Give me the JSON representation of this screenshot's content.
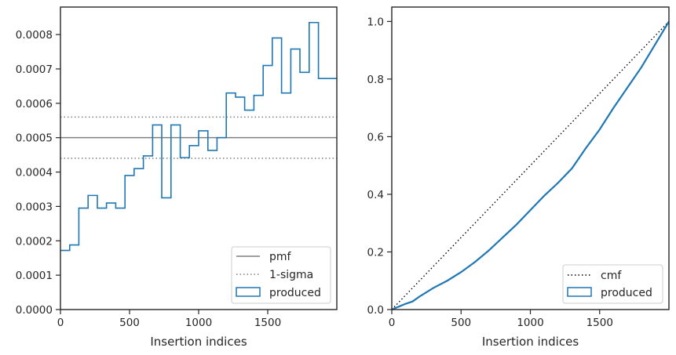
{
  "chart_data": [
    {
      "type": "step",
      "xlabel": "Insertion indices",
      "ylabel": "",
      "xlim": [
        0,
        2000
      ],
      "ylim": [
        0,
        0.00088
      ],
      "xticks": [
        0,
        500,
        1000,
        1500
      ],
      "xtick_labels": [
        "0",
        "500",
        "1000",
        "1500"
      ],
      "yticks": [
        0,
        0.0001,
        0.0002,
        0.0003,
        0.0004,
        0.0005,
        0.0006,
        0.0007,
        0.0008
      ],
      "ytick_labels": [
        "0.0000",
        "0.0001",
        "0.0002",
        "0.0003",
        "0.0004",
        "0.0005",
        "0.0006",
        "0.0007",
        "0.0008"
      ],
      "grid": false,
      "legend_position": "bottom-right",
      "pmf": {
        "name": "pmf",
        "value": 0.0005,
        "color": "#7f7f7f"
      },
      "sigma": {
        "name": "1-sigma",
        "lower": 0.00044,
        "upper": 0.00056,
        "color": "#7f7f7f"
      },
      "histogram": {
        "name": "produced",
        "color": "#1f77b4",
        "bin_edges": [
          0,
          67,
          133,
          200,
          267,
          333,
          400,
          467,
          533,
          600,
          667,
          733,
          800,
          867,
          933,
          1000,
          1067,
          1133,
          1200,
          1267,
          1333,
          1400,
          1467,
          1533,
          1600,
          1667,
          1733,
          1800,
          1867,
          1933,
          2000
        ],
        "values": [
          0.000172,
          0.000188,
          0.000295,
          0.000332,
          0.000295,
          0.00031,
          0.000295,
          0.00039,
          0.00041,
          0.000447,
          0.000537,
          0.000325,
          0.000537,
          0.000442,
          0.000477,
          0.00052,
          0.000463,
          0.0005,
          0.00063,
          0.000618,
          0.00058,
          0.000623,
          0.00071,
          0.00079,
          0.00063,
          0.000758,
          0.00069,
          0.000835,
          0.000672,
          0.000672
        ]
      }
    },
    {
      "type": "line",
      "xlabel": "Insertion indices",
      "ylabel": "",
      "xlim": [
        0,
        2000
      ],
      "ylim": [
        0,
        1.05
      ],
      "xticks": [
        0,
        500,
        1000,
        1500
      ],
      "xtick_labels": [
        "0",
        "500",
        "1000",
        "1500"
      ],
      "yticks": [
        0,
        0.2,
        0.4,
        0.6,
        0.8,
        1.0
      ],
      "ytick_labels": [
        "0.0",
        "0.2",
        "0.4",
        "0.6",
        "0.8",
        "1.0"
      ],
      "grid": false,
      "legend_position": "bottom-right",
      "series": [
        {
          "name": "cmf",
          "style": "dotted",
          "color": "#000000",
          "x": [
            0,
            2000
          ],
          "y": [
            0,
            1.0
          ]
        },
        {
          "name": "produced",
          "style": "solid",
          "color": "#1f77b4",
          "x": [
            0,
            100,
            150,
            200,
            300,
            400,
            500,
            600,
            700,
            800,
            900,
            1000,
            1100,
            1200,
            1300,
            1400,
            1500,
            1600,
            1700,
            1800,
            1900,
            2000
          ],
          "y": [
            0,
            0.02,
            0.028,
            0.045,
            0.075,
            0.1,
            0.13,
            0.165,
            0.205,
            0.25,
            0.295,
            0.345,
            0.395,
            0.44,
            0.49,
            0.56,
            0.625,
            0.7,
            0.77,
            0.84,
            0.92,
            1.0
          ]
        }
      ]
    }
  ]
}
